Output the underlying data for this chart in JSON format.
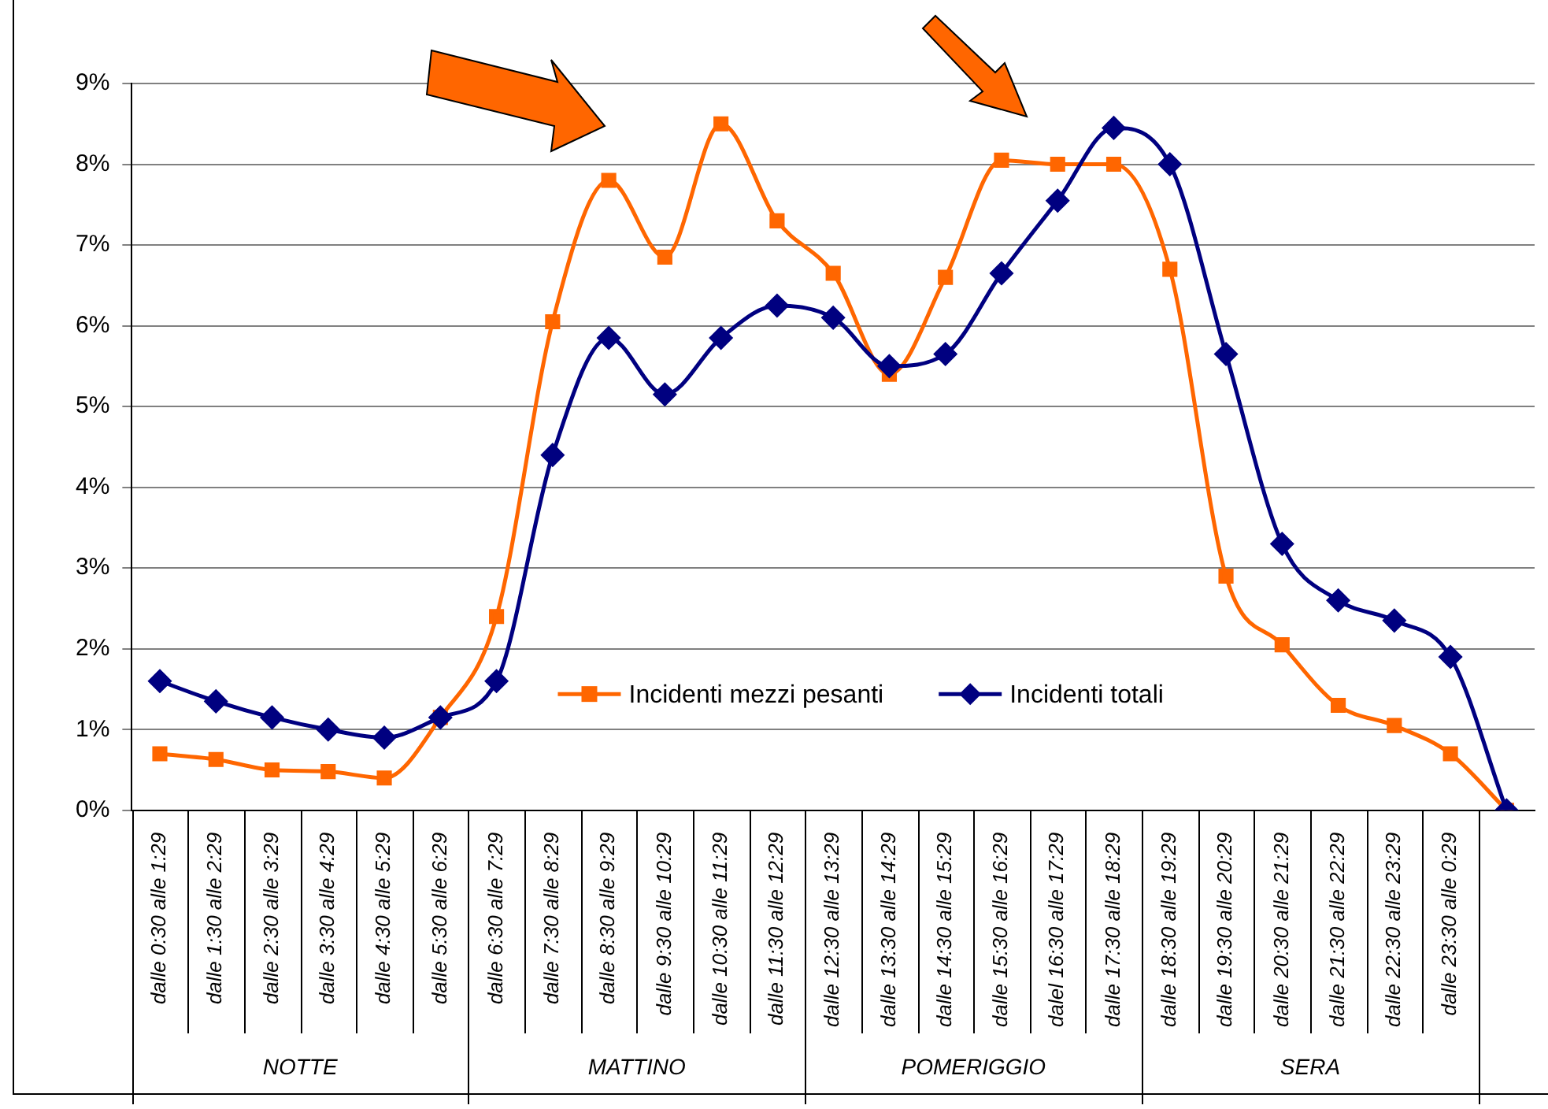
{
  "chart_data": {
    "type": "line",
    "categories": [
      "dalle 0:30 alle 1:29",
      "dalle 1:30 alle 2:29",
      "dalle 2:30 alle 3:29",
      "dalle 3:30 alle 4:29",
      "dalle 4:30 alle 5:29",
      "dalle 5:30 alle 6:29",
      "dalle 6:30 alle 7:29",
      "dalle 7:30 alle 8:29",
      "dalle 8:30 alle 9:29",
      "dalle 9:30 alle 10:29",
      "dalle 10:30 alle 11:29",
      "dalle 11:30 alle 12:29",
      "dalle 12:30 alle 13:29",
      "dalle 13:30 alle 14:29",
      "dalle 14:30 alle 15:29",
      "dalle 15:30 alle 16:29",
      "dalel 16:30 alle 17:29",
      "dalle 17:30 alle 18:29",
      "dalle 18:30 alle 19:29",
      "dalle 19:30 alle 20:29",
      "dalle 20:30 alle 21:29",
      "dalle 21:30 alle 22:29",
      "dalle 22:30 alle 23:29",
      "dalle 23:30 alle 0:29",
      null
    ],
    "series": [
      {
        "name": "Incidenti mezzi pesanti",
        "color": "#ff6600",
        "marker": "square",
        "values": [
          0.7,
          0.63,
          0.5,
          0.48,
          0.4,
          1.15,
          2.4,
          6.05,
          7.8,
          6.85,
          8.5,
          7.3,
          6.65,
          5.4,
          6.6,
          8.05,
          8.0,
          8.0,
          6.7,
          2.9,
          2.05,
          1.3,
          1.05,
          0.7,
          0
        ]
      },
      {
        "name": "Incidenti totali",
        "color": "#000080",
        "marker": "diamond",
        "values": [
          1.6,
          1.35,
          1.15,
          1.0,
          0.9,
          1.15,
          1.6,
          4.4,
          5.85,
          5.15,
          5.85,
          6.25,
          6.1,
          5.5,
          5.65,
          6.65,
          7.55,
          8.45,
          8.0,
          5.65,
          3.3,
          2.6,
          2.35,
          1.9,
          0
        ]
      }
    ],
    "ylim": [
      0,
      9
    ],
    "yticks": [
      {
        "value": 0,
        "label": "0%"
      },
      {
        "value": 1,
        "label": "1%"
      },
      {
        "value": 2,
        "label": "2%"
      },
      {
        "value": 3,
        "label": "3%"
      },
      {
        "value": 4,
        "label": "4%"
      },
      {
        "value": 5,
        "label": "5%"
      },
      {
        "value": 6,
        "label": "6%"
      },
      {
        "value": 7,
        "label": "7%"
      },
      {
        "value": 8,
        "label": "8%"
      },
      {
        "value": 9,
        "label": "9%"
      }
    ],
    "grid": "y",
    "legend": "bottom",
    "annotations": [
      "NOTTE",
      "MATTINO",
      "POMERIGGIO",
      "SERA"
    ]
  }
}
